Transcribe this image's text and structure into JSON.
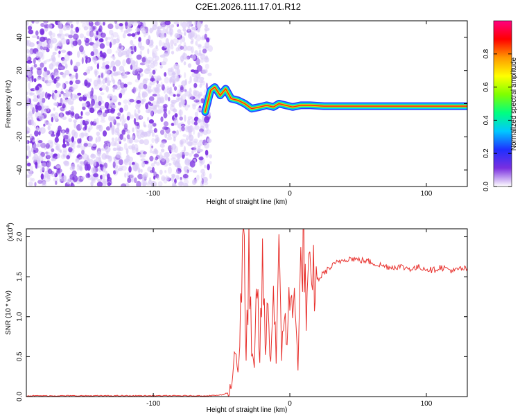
{
  "figure_title": "C2E1.2026.111.17.01.R12",
  "colors": {
    "snr_line": "#e8312d",
    "speckle": "#7a2fe0",
    "speckle_light": "#d9c9f7"
  },
  "chart_data": [
    {
      "type": "heatmap",
      "xlabel": "Height of straight line (km)",
      "ylabel": "Frequency (Hz)",
      "xlim": [
        -193,
        130
      ],
      "ylim": [
        -50,
        50
      ],
      "xticks": [
        -100,
        0,
        100
      ],
      "xtick_labels": [
        "-100",
        "0",
        "100"
      ],
      "yticks": [
        -40,
        -20,
        0,
        20,
        40
      ],
      "ytick_labels": [
        "-40",
        "-20",
        "0",
        "20",
        "40"
      ],
      "noise_region_x": [
        -193,
        -58
      ],
      "ridge": {
        "x": [
          -62,
          -58,
          -55,
          -51,
          -47,
          -43,
          -38,
          -33,
          -28,
          -22,
          -17,
          -12,
          -8,
          -3,
          2,
          8,
          15,
          25,
          40,
          60,
          80,
          100,
          115,
          130
        ],
        "y": [
          -5,
          8,
          10,
          5,
          9,
          3,
          2,
          0,
          -3,
          -2,
          -1,
          -2,
          0,
          -1,
          -2,
          -1,
          -1,
          -1.5,
          -1.5,
          -1.5,
          -1.5,
          -1.5,
          -1.5,
          -1.5
        ]
      },
      "colorbar": {
        "label": "Normalized spectral amplitude",
        "range": [
          0,
          1
        ],
        "ticks": [
          0,
          0.2,
          0.4,
          0.6,
          0.8
        ],
        "tick_labels": [
          "0.0",
          "0.2",
          "0.4",
          "0.6",
          "0.8"
        ],
        "colormap": [
          "#ffffff",
          "#7a2fe0",
          "#1f2fff",
          "#00c8ff",
          "#00ff80",
          "#7fff00",
          "#ffff00",
          "#ff9900",
          "#ff0000",
          "#ff0080"
        ]
      }
    },
    {
      "type": "line",
      "xlabel": "Height of straight line (km)",
      "ylabel": "SNR (10 * v/v)",
      "y_multiplier_label": "(x10",
      "y_multiplier_exp": "4",
      "y_multiplier_close": ")",
      "xlim": [
        -193,
        130
      ],
      "ylim": [
        0,
        2.1
      ],
      "xticks": [
        -100,
        0,
        100
      ],
      "xtick_labels": [
        "-100",
        "0",
        "100"
      ],
      "yticks": [
        0,
        0.5,
        1.0,
        1.5,
        2.0
      ],
      "ytick_labels": [
        "0.0",
        "0.5",
        "1.0",
        "1.5",
        "2.0"
      ],
      "series": [
        {
          "x": [
            -193,
            -150,
            -100,
            -60,
            -50,
            -45,
            -42,
            -40,
            -38,
            -36,
            -34,
            -32,
            -30,
            -28,
            -26,
            -24,
            -22,
            -20,
            -18,
            -16,
            -14,
            -12,
            -10,
            -8,
            -6,
            -4,
            -2,
            0,
            2,
            4,
            6,
            8,
            10,
            12,
            14,
            16,
            18,
            20,
            25,
            30,
            35,
            40,
            45,
            50,
            55,
            60,
            65,
            70,
            75,
            80,
            85,
            90,
            95,
            100,
            105,
            110,
            115,
            120,
            125,
            130
          ],
          "y": [
            0.01,
            0.01,
            0.01,
            0.01,
            0.02,
            0.05,
            0.2,
            0.7,
            0.3,
            1.0,
            2.1,
            0.4,
            1.8,
            0.5,
            0.3,
            1.5,
            0.4,
            1.7,
            0.6,
            1.1,
            0.5,
            1.3,
            0.6,
            1.6,
            0.5,
            1.2,
            0.7,
            1.3,
            0.9,
            1.5,
            0.3,
            1.6,
            2.1,
            1.0,
            1.4,
            1.3,
            1.5,
            1.45,
            1.55,
            1.62,
            1.68,
            1.72,
            1.73,
            1.71,
            1.7,
            1.68,
            1.65,
            1.63,
            1.62,
            1.63,
            1.61,
            1.6,
            1.62,
            1.6,
            1.58,
            1.62,
            1.6,
            1.57,
            1.6,
            1.6
          ]
        }
      ]
    }
  ]
}
